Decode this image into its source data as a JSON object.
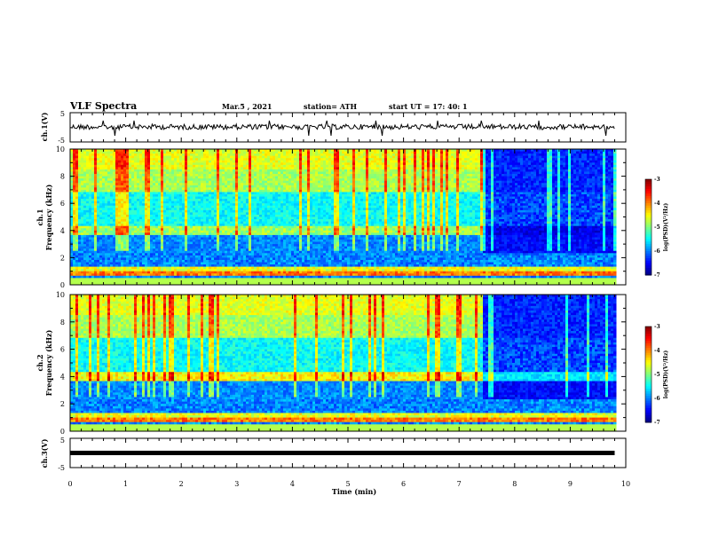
{
  "header": {
    "title": "VLF Spectra",
    "date": "Mar.5 , 2021",
    "station": "station= ATH",
    "start": "start UT = 17: 40: 1"
  },
  "chart_data": [
    {
      "id": "ch1-voltage",
      "type": "line",
      "ylabel": "ch.1(V)",
      "ylim": [
        -5,
        5
      ],
      "yticks": [
        "5",
        "-5"
      ],
      "xlim": [
        0,
        10
      ],
      "description_value": "noisy waveform near ~0 V with occasional spikes",
      "y_level": 0
    },
    {
      "id": "ch1-spectrogram",
      "type": "heatmap",
      "ylabel": "ch.1\nFrequency (kHz)",
      "ylabel_lines": [
        "ch.1",
        "Frequency (kHz)"
      ],
      "yticks": [
        "0",
        "2",
        "4",
        "6",
        "8",
        "10"
      ],
      "ylim": [
        0,
        10
      ],
      "xlim": [
        0,
        10
      ],
      "data_end_min": 9.8,
      "change_time_min": 7.4,
      "colorbar": {
        "label": "log(PSD)(V²/Hz)",
        "ticks": [
          "-3",
          "-4",
          "-5",
          "-6",
          "-7"
        ],
        "range": [
          -7,
          -3
        ]
      }
    },
    {
      "id": "ch2-spectrogram",
      "type": "heatmap",
      "ylabel_lines": [
        "ch.2",
        "Frequency (kHz)"
      ],
      "yticks": [
        "0",
        "2",
        "4",
        "6",
        "8",
        "10"
      ],
      "ylim": [
        0,
        10
      ],
      "xlim": [
        0,
        10
      ],
      "data_end_min": 9.8,
      "change_time_min": 7.4,
      "colorbar": {
        "label": "log(PSD)(V²/Hz)",
        "ticks": [
          "-3",
          "-4",
          "-5",
          "-6",
          "-7"
        ],
        "range": [
          -7,
          -3
        ]
      }
    },
    {
      "id": "ch3-voltage",
      "type": "line",
      "ylabel": "ch.3(V)",
      "ylim": [
        -5,
        5
      ],
      "yticks": [
        "5",
        "-5"
      ],
      "xlim": [
        0,
        10
      ],
      "y_level": 0
    }
  ],
  "xaxis": {
    "label": "Time (min)",
    "ticks": [
      "0",
      "1",
      "2",
      "3",
      "4",
      "5",
      "6",
      "7",
      "8",
      "9",
      "10"
    ]
  }
}
